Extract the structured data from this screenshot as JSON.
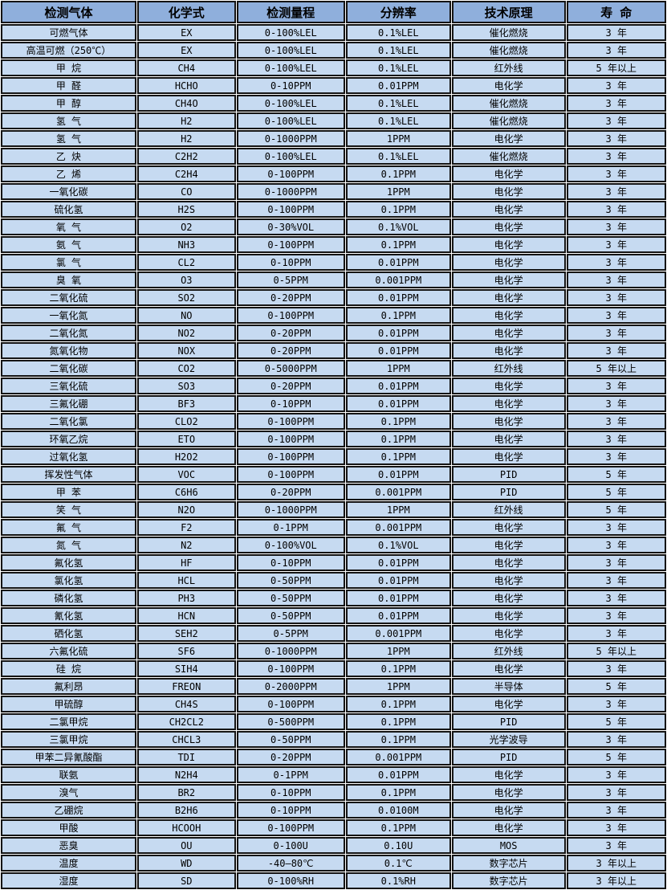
{
  "colors": {
    "header_bg": "#8fafdc",
    "row_bg": "#c6daf1",
    "border": "#141414",
    "text": "#000000"
  },
  "table": {
    "columns": [
      {
        "key": "gas",
        "label": "检测气体"
      },
      {
        "key": "formula",
        "label": "化学式"
      },
      {
        "key": "range",
        "label": "检测量程"
      },
      {
        "key": "resolution",
        "label": "分辨率"
      },
      {
        "key": "principle",
        "label": "技术原理"
      },
      {
        "key": "lifespan",
        "label": "寿 命"
      }
    ],
    "rows": [
      [
        "可燃气体",
        "EX",
        "0-100%LEL",
        "0.1%LEL",
        "催化燃烧",
        "3 年"
      ],
      [
        "高温可燃（250℃）",
        "EX",
        "0-100%LEL",
        "0.1%LEL",
        "催化燃烧",
        "3 年"
      ],
      [
        "甲 烷",
        "CH4",
        "0-100%LEL",
        "0.1%LEL",
        "红外线",
        "5 年以上"
      ],
      [
        "甲 醛",
        "HCHO",
        "0-10PPM",
        "0.01PPM",
        "电化学",
        "3 年"
      ],
      [
        "甲 醇",
        "CH4O",
        "0-100%LEL",
        "0.1%LEL",
        "催化燃烧",
        "3 年"
      ],
      [
        "氢 气",
        "H2",
        "0-100%LEL",
        "0.1%LEL",
        "催化燃烧",
        "3 年"
      ],
      [
        "氢 气",
        "H2",
        "0-1000PPM",
        "1PPM",
        "电化学",
        "3 年"
      ],
      [
        "乙 炔",
        "C2H2",
        "0-100%LEL",
        "0.1%LEL",
        "催化燃烧",
        "3 年"
      ],
      [
        "乙 烯",
        "C2H4",
        "0-100PPM",
        "0.1PPM",
        "电化学",
        "3 年"
      ],
      [
        "一氧化碳",
        "CO",
        "0-1000PPM",
        "1PPM",
        "电化学",
        "3 年"
      ],
      [
        "硫化氢",
        "H2S",
        "0-100PPM",
        "0.1PPM",
        "电化学",
        "3 年"
      ],
      [
        "氧 气",
        "O2",
        "0-30%VOL",
        "0.1%VOL",
        "电化学",
        "3 年"
      ],
      [
        "氨 气",
        "NH3",
        "0-100PPM",
        "0.1PPM",
        "电化学",
        "3 年"
      ],
      [
        "氯 气",
        "CL2",
        "0-10PPM",
        "0.01PPM",
        "电化学",
        "3 年"
      ],
      [
        "臭 氧",
        "O3",
        "0-5PPM",
        "0.001PPM",
        "电化学",
        "3 年"
      ],
      [
        "二氧化硫",
        "SO2",
        "0-20PPM",
        "0.01PPM",
        "电化学",
        "3 年"
      ],
      [
        "一氧化氮",
        "NO",
        "0-100PPM",
        "0.1PPM",
        "电化学",
        "3 年"
      ],
      [
        "二氧化氮",
        "NO2",
        "0-20PPM",
        "0.01PPM",
        "电化学",
        "3 年"
      ],
      [
        "氮氧化物",
        "NOX",
        "0-20PPM",
        "0.01PPM",
        "电化学",
        "3 年"
      ],
      [
        "二氧化碳",
        "CO2",
        "0-5000PPM",
        "1PPM",
        "红外线",
        "5 年以上"
      ],
      [
        "三氧化硫",
        "SO3",
        "0-20PPM",
        "0.01PPM",
        "电化学",
        "3 年"
      ],
      [
        "三氟化硼",
        "BF3",
        "0-10PPM",
        "0.01PPM",
        "电化学",
        "3 年"
      ],
      [
        "二氧化氯",
        "CLO2",
        "0-100PPM",
        "0.1PPM",
        "电化学",
        "3 年"
      ],
      [
        "环氧乙烷",
        "ETO",
        "0-100PPM",
        "0.1PPM",
        "电化学",
        "3 年"
      ],
      [
        "过氧化氢",
        "H2O2",
        "0-100PPM",
        "0.1PPM",
        "电化学",
        "3 年"
      ],
      [
        "挥发性气体",
        "VOC",
        "0-100PPM",
        "0.01PPM",
        "PID",
        "5 年"
      ],
      [
        "甲 苯",
        "C6H6",
        "0-20PPM",
        "0.001PPM",
        "PID",
        "5 年"
      ],
      [
        "笑 气",
        "N2O",
        "0-1000PPM",
        "1PPM",
        "红外线",
        "5 年"
      ],
      [
        "氟 气",
        "F2",
        "0-1PPM",
        "0.001PPM",
        "电化学",
        "3 年"
      ],
      [
        "氮 气",
        "N2",
        "0-100%VOL",
        "0.1%VOL",
        "电化学",
        "3 年"
      ],
      [
        "氟化氢",
        "HF",
        "0-10PPM",
        "0.01PPM",
        "电化学",
        "3 年"
      ],
      [
        "氯化氢",
        "HCL",
        "0-50PPM",
        "0.01PPM",
        "电化学",
        "3 年"
      ],
      [
        "磷化氢",
        "PH3",
        "0-50PPM",
        "0.01PPM",
        "电化学",
        "3 年"
      ],
      [
        "氰化氢",
        "HCN",
        "0-50PPM",
        "0.01PPM",
        "电化学",
        "3 年"
      ],
      [
        "硒化氢",
        "SEH2",
        "0-5PPM",
        "0.001PPM",
        "电化学",
        "3 年"
      ],
      [
        "六氟化硫",
        "SF6",
        "0-1000PPM",
        "1PPM",
        "红外线",
        "5 年以上"
      ],
      [
        "硅 烷",
        "SIH4",
        "0-100PPM",
        "0.1PPM",
        "电化学",
        "3 年"
      ],
      [
        "氟利昂",
        "FREON",
        "0-2000PPM",
        "1PPM",
        "半导体",
        "5 年"
      ],
      [
        "甲硫醇",
        "CH4S",
        "0-100PPM",
        "0.1PPM",
        "电化学",
        "3 年"
      ],
      [
        "二氯甲烷",
        "CH2CL2",
        "0-500PPM",
        "0.1PPM",
        "PID",
        "5 年"
      ],
      [
        "三氯甲烷",
        "CHCL3",
        "0-50PPM",
        "0.1PPM",
        "光学波导",
        "3 年"
      ],
      [
        "甲苯二异氰酸酯",
        "TDI",
        "0-20PPM",
        "0.001PPM",
        "PID",
        "5 年"
      ],
      [
        "联氨",
        "N2H4",
        "0-1PPM",
        "0.01PPM",
        "电化学",
        "3 年"
      ],
      [
        "溴气",
        "BR2",
        "0-10PPM",
        "0.1PPM",
        "电化学",
        "3 年"
      ],
      [
        "乙硼烷",
        "B2H6",
        "0-10PPM",
        "0.0100M",
        "电化学",
        "3 年"
      ],
      [
        "甲酸",
        "HCOOH",
        "0-100PPM",
        "0.1PPM",
        "电化学",
        "3 年"
      ],
      [
        "恶臭",
        "OU",
        "0-100U",
        "0.10U",
        "MOS",
        "3 年"
      ],
      [
        "温度",
        "WD",
        "-40—80℃",
        "0.1℃",
        "数字芯片",
        "3 年以上"
      ],
      [
        "湿度",
        "SD",
        "0-100%RH",
        "0.1%RH",
        "数字芯片",
        "3 年以上"
      ]
    ]
  }
}
